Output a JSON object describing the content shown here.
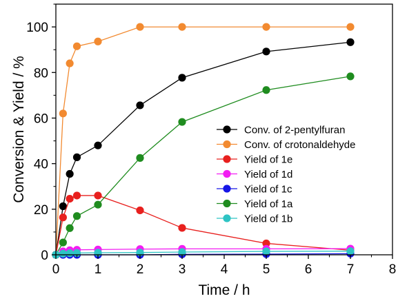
{
  "chart_data": {
    "type": "line",
    "xlabel": "Time / h",
    "ylabel": "Conversion & Yield / %",
    "xlim": [
      0,
      8
    ],
    "ylim": [
      0,
      110
    ],
    "xticks": [
      "0",
      "1",
      "2",
      "3",
      "4",
      "5",
      "6",
      "7",
      "8"
    ],
    "yticks": [
      "0",
      "20",
      "40",
      "60",
      "80",
      "100"
    ],
    "grid": false,
    "legend_position": "right",
    "x": [
      0,
      0.17,
      0.33,
      0.5,
      1,
      2,
      3,
      5,
      7
    ],
    "series": [
      {
        "name": "Conv. of 2-pentylfuran",
        "color": "#000000",
        "values": [
          0,
          21.3,
          35.5,
          42.8,
          48,
          65.6,
          77.7,
          89.2,
          93.3
        ]
      },
      {
        "name": "Conv. of crotonaldehyde",
        "color": "#f28a30",
        "values": [
          0,
          62,
          84,
          91.5,
          93.6,
          100,
          100,
          100,
          100
        ]
      },
      {
        "name": "Yield of 1e",
        "color": "#e8201e",
        "values": [
          0,
          16.4,
          24.6,
          26,
          26,
          19.5,
          11.8,
          5,
          2
        ]
      },
      {
        "name": "Yield of 1d",
        "color": "#f21df2",
        "values": [
          0,
          1.5,
          2,
          2.2,
          2.3,
          2.5,
          2.6,
          2.6,
          2.7
        ]
      },
      {
        "name": "Yield of 1c",
        "color": "#1616e6",
        "values": [
          0,
          0,
          0,
          0,
          0,
          0,
          0.2,
          0.3,
          0.5
        ]
      },
      {
        "name": "Yield of 1a",
        "color": "#1f8c1f",
        "values": [
          0,
          5.4,
          11.7,
          17,
          22,
          42.5,
          58.3,
          72.3,
          78.3
        ]
      },
      {
        "name": "Yield of 1b",
        "color": "#2ec4c4",
        "values": [
          0,
          0.5,
          0.7,
          0.8,
          0.9,
          1,
          1.2,
          1.5,
          1.6
        ]
      }
    ]
  }
}
